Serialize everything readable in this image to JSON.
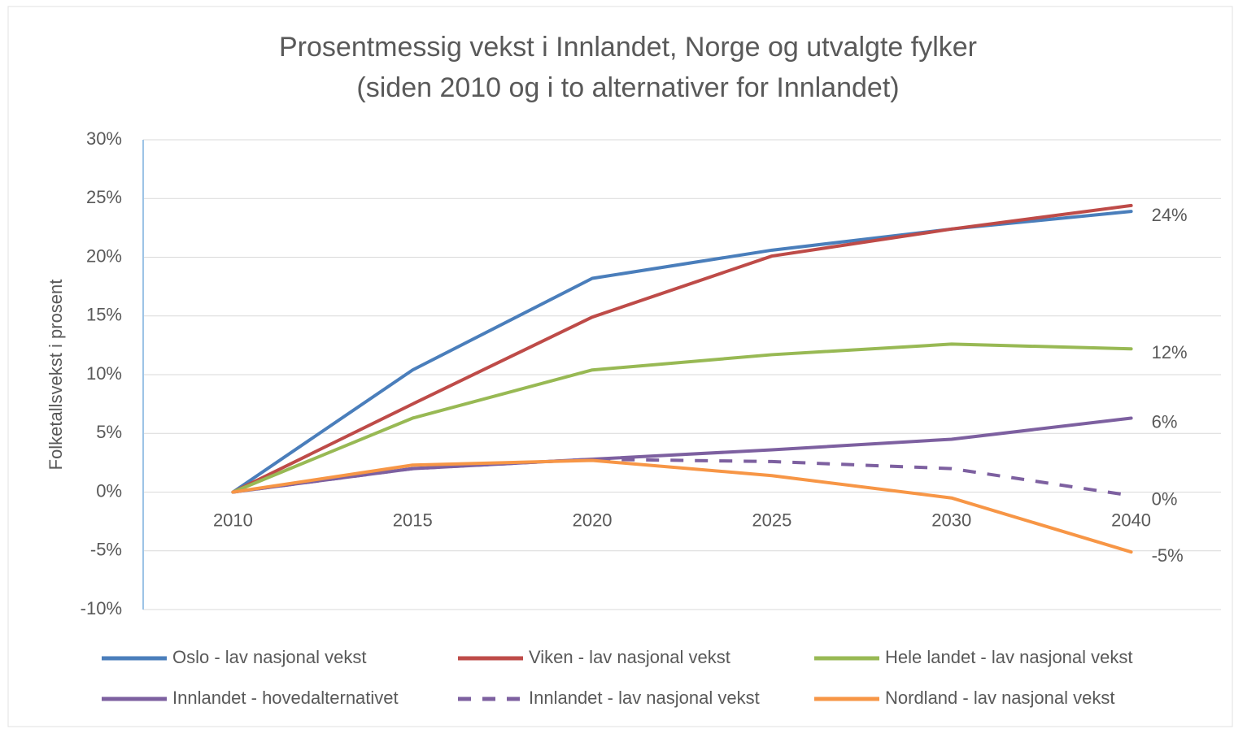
{
  "chart_data": {
    "type": "line",
    "title": [
      "Prosentmessig vekst i Innlandet, Norge og utvalgte fylker",
      "(siden 2010 og i to alternativer for Innlandet)"
    ],
    "y_label": "Folketallsvekst i prosent",
    "categories": [
      "2010",
      "2015",
      "2020",
      "2025",
      "2030",
      "2040"
    ],
    "ylim": [
      -10,
      30
    ],
    "yticks": [
      {
        "value": -10,
        "label": "-10%"
      },
      {
        "value": -5,
        "label": "-5%"
      },
      {
        "value": 0,
        "label": "0%"
      },
      {
        "value": 5,
        "label": "5%"
      },
      {
        "value": 10,
        "label": "10%"
      },
      {
        "value": 15,
        "label": "15%"
      },
      {
        "value": 20,
        "label": "20%"
      },
      {
        "value": 25,
        "label": "25%"
      },
      {
        "value": 30,
        "label": "30%"
      }
    ],
    "grid": true,
    "legend": "bottom",
    "series": [
      {
        "name": "Oslo - lav nasjonal vekst",
        "color": "#4a7ebb",
        "values": [
          0,
          10.4,
          18.2,
          20.6,
          22.4,
          23.9
        ],
        "value_labels": [
          null,
          null,
          null,
          null,
          null,
          "24%"
        ]
      },
      {
        "name": "Viken - lav nasjonal vekst",
        "color": "#be4b48",
        "values": [
          0,
          7.5,
          14.9,
          20.1,
          22.4,
          24.4
        ]
      },
      {
        "name": "Hele landet - lav nasjonal vekst",
        "color": "#98b954",
        "values": [
          0,
          6.3,
          10.4,
          11.7,
          12.6,
          12.2
        ],
        "value_labels": [
          null,
          null,
          null,
          null,
          null,
          "12%"
        ]
      },
      {
        "name": "Innlandet - hovedalternativet",
        "color": "#7d60a0",
        "values": [
          0,
          2.0,
          2.8,
          3.6,
          4.5,
          6.3
        ],
        "value_labels": [
          null,
          null,
          null,
          null,
          null,
          "6%"
        ]
      },
      {
        "name": "Innlandet - lav nasjonal vekst",
        "color": "#7d60a0",
        "dashed": true,
        "values": [
          0,
          2.0,
          2.8,
          2.6,
          2.0,
          -0.3
        ],
        "value_labels": [
          null,
          null,
          null,
          null,
          null,
          "0%"
        ]
      },
      {
        "name": "Nordland - lav nasjonal vekst",
        "color": "#f79646",
        "values": [
          0,
          2.3,
          2.7,
          1.4,
          -0.5,
          -5.1
        ],
        "value_labels": [
          null,
          null,
          null,
          null,
          null,
          "-5%"
        ]
      }
    ]
  }
}
